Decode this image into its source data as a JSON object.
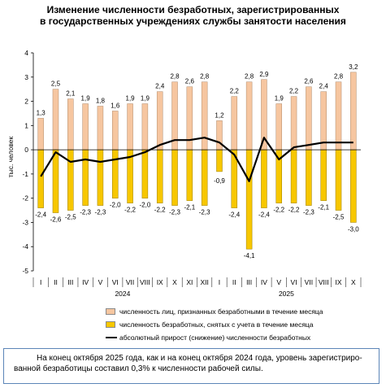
{
  "title_line1": "Изменение численности безработных, зарегистрированных",
  "title_line2": "в государственных учреждениях службы занятости населения",
  "chart_data": {
    "type": "bar",
    "ylabel": "тыс. человек",
    "ylim": [
      -5,
      4
    ],
    "yticks": [
      -5,
      -4,
      -3,
      -2,
      -1,
      0,
      1,
      2,
      3,
      4
    ],
    "categories": [
      "I",
      "II",
      "III",
      "IV",
      "V",
      "VI",
      "VII",
      "VIII",
      "IX",
      "X",
      "XI",
      "XII",
      "I",
      "II",
      "III",
      "IV",
      "V",
      "VI",
      "VII",
      "VIII",
      "IX",
      "X"
    ],
    "year_groups": [
      {
        "label": "2024",
        "start": 0,
        "end": 11
      },
      {
        "label": "2025",
        "start": 12,
        "end": 21
      }
    ],
    "series": [
      {
        "name": "численность лиц, признанных безработными в течение месяца",
        "kind": "bar",
        "color": "#f6c6a0",
        "edge": "#b08a6a",
        "values": [
          1.3,
          2.5,
          2.1,
          1.9,
          1.8,
          1.6,
          1.9,
          1.9,
          2.4,
          2.8,
          2.6,
          2.8,
          1.2,
          2.2,
          2.8,
          2.9,
          1.9,
          2.2,
          2.6,
          2.4,
          2.8,
          3.2
        ],
        "labels": [
          "1,3",
          "2,5",
          "2,1",
          "1,9",
          "1,8",
          "1,6",
          "1,9",
          "1,9",
          "2,4",
          "2,8",
          "2,6",
          "2,8",
          "1,2",
          "2,2",
          "2,8",
          "2,9",
          "1,9",
          "2,2",
          "2,6",
          "2,4",
          "2,8",
          "3,2"
        ]
      },
      {
        "name": "численность безработных, снятых с учета в течение месяца",
        "kind": "bar",
        "color": "#f7c700",
        "edge": "#9a7c00",
        "values": [
          -2.4,
          -2.6,
          -2.5,
          -2.3,
          -2.3,
          -2.0,
          -2.2,
          -2.0,
          -2.2,
          -2.3,
          -2.1,
          -2.3,
          -0.9,
          -2.4,
          -4.1,
          -2.4,
          -2.2,
          -2.2,
          -2.3,
          -2.1,
          -2.5,
          -3.0
        ],
        "labels": [
          "-2,4",
          "-2,6",
          "-2,5",
          "-2,3",
          "-2,3",
          "-2,0",
          "-2,2",
          "-2,0",
          "-2,2",
          "-2,3",
          "-2,1",
          "-2,3",
          "-0,9",
          "-2,4",
          "-4,1",
          "-2,4",
          "-2,2",
          "-2,2",
          "-2,3",
          "-2,1",
          "-2,5",
          "-3,0"
        ]
      },
      {
        "name": "абсолютный прирост (снижение) численности безработных",
        "kind": "line",
        "color": "#000000",
        "values": [
          -1.1,
          -0.1,
          -0.5,
          -0.4,
          -0.5,
          -0.4,
          -0.3,
          -0.1,
          0.2,
          0.4,
          0.4,
          0.5,
          0.3,
          -0.2,
          -1.3,
          0.5,
          -0.4,
          0.1,
          0.2,
          0.3,
          0.3,
          0.3
        ]
      }
    ]
  },
  "note": "На конец октября 2025 года, как и на конец октября 2024 года, уровень зарегистриро-ванной безработицы составил 0,3% к численности рабочей силы."
}
